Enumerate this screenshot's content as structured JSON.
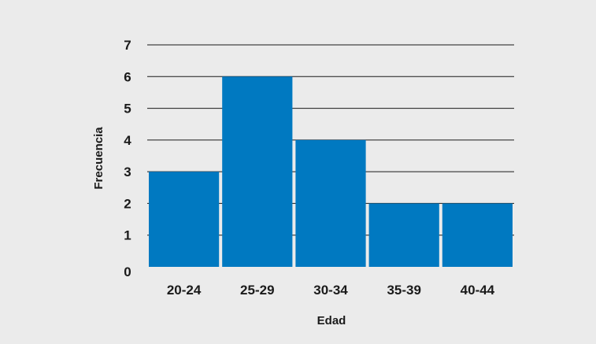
{
  "chart_data": {
    "type": "bar",
    "categories": [
      "20-24",
      "25-29",
      "30-34",
      "35-39",
      "40-44"
    ],
    "values": [
      3,
      6,
      4,
      2,
      2
    ],
    "xlabel": "Edad",
    "ylabel": "Frecuencia",
    "ylim": [
      0,
      7
    ],
    "yticks": [
      "0",
      "1",
      "2",
      "3",
      "4",
      "5",
      "6",
      "7"
    ],
    "grid": true,
    "bar_color": "#0079c1",
    "gridline_color": "#1a1a1a",
    "background_color": "#ebebeb"
  }
}
